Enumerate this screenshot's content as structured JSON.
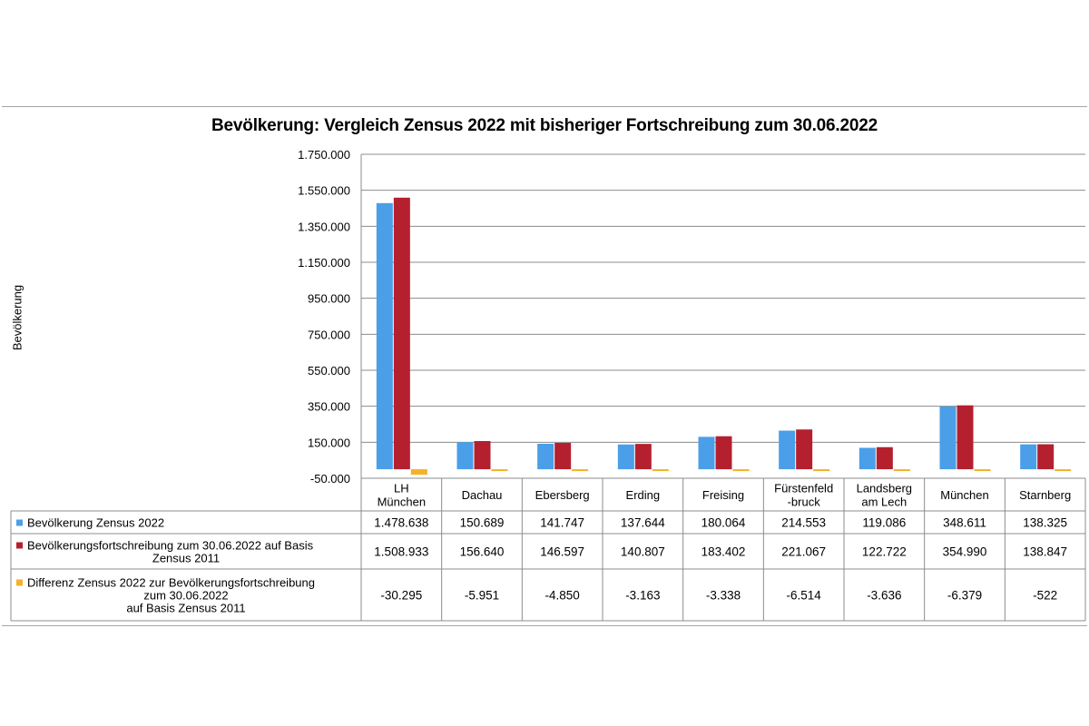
{
  "chart_data": {
    "type": "bar",
    "title": "Bevölkerung: Vergleich Zensus 2022 mit bisheriger Fortschreibung zum 30.06.2022",
    "ylabel": "Bevölkerung",
    "xlabel": "",
    "ylim": [
      -50000,
      1750000
    ],
    "yticks": [
      "1.750.000",
      "1.550.000",
      "1.350.000",
      "1.150.000",
      "950.000",
      "750.000",
      "550.000",
      "350.000",
      "150.000",
      "-50.000"
    ],
    "ytick_values": [
      1750000,
      1550000,
      1350000,
      1150000,
      950000,
      750000,
      550000,
      350000,
      150000,
      -50000
    ],
    "grid": true,
    "legend": "data-table-left",
    "categories": [
      [
        "LH",
        "München"
      ],
      [
        "Dachau"
      ],
      [
        "Ebersberg"
      ],
      [
        "Erding"
      ],
      [
        "Freising"
      ],
      [
        "Fürstenfeld",
        "-bruck"
      ],
      [
        "Landsberg",
        "am Lech"
      ],
      [
        "München"
      ],
      [
        "Starnberg"
      ]
    ],
    "series": [
      {
        "name": "Bevölkerung Zensus 2022",
        "name_lines": [
          "Bevölkerung Zensus 2022"
        ],
        "color": "#4a9fe8",
        "values": [
          1478638,
          150689,
          141747,
          137644,
          180064,
          214553,
          119086,
          348611,
          138325
        ],
        "labels": [
          "1.478.638",
          "150.689",
          "141.747",
          "137.644",
          "180.064",
          "214.553",
          "119.086",
          "348.611",
          "138.325"
        ]
      },
      {
        "name": "Bevölkerungsfortschreibung zum 30.06.2022 auf Basis Zensus 2011",
        "name_lines": [
          "Bevölkerungsfortschreibung zum 30.06.2022 auf Basis",
          "Zensus 2011"
        ],
        "color": "#b5202e",
        "values": [
          1508933,
          156640,
          146597,
          140807,
          183402,
          221067,
          122722,
          354990,
          138847
        ],
        "labels": [
          "1.508.933",
          "156.640",
          "146.597",
          "140.807",
          "183.402",
          "221.067",
          "122.722",
          "354.990",
          "138.847"
        ]
      },
      {
        "name": "Differenz Zensus 2022 zur Bevölkerungsfortschreibung zum 30.06.2022 auf Basis Zensus 2011",
        "name_lines": [
          "Differenz Zensus 2022 zur Bevölkerungsfortschreibung",
          "zum 30.06.2022",
          "auf Basis Zensus 2011"
        ],
        "color": "#f5b127",
        "values": [
          -30295,
          -5951,
          -4850,
          -3163,
          -3338,
          -6514,
          -3636,
          -6379,
          -522
        ],
        "labels": [
          "-30.295",
          "-5.951",
          "-4.850",
          "-3.163",
          "-3.338",
          "-6.514",
          "-3.636",
          "-6.379",
          "-522"
        ]
      }
    ]
  }
}
